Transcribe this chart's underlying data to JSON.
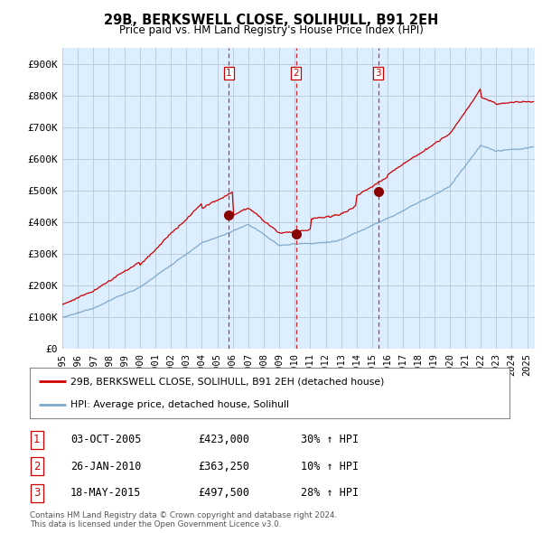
{
  "title": "29B, BERKSWELL CLOSE, SOLIHULL, B91 2EH",
  "subtitle": "Price paid vs. HM Land Registry's House Price Index (HPI)",
  "ylabel_ticks": [
    "£0",
    "£100K",
    "£200K",
    "£300K",
    "£400K",
    "£500K",
    "£600K",
    "£700K",
    "£800K",
    "£900K"
  ],
  "ytick_values": [
    0,
    100000,
    200000,
    300000,
    400000,
    500000,
    600000,
    700000,
    800000,
    900000
  ],
  "ylim": [
    0,
    950000
  ],
  "xlim_start": 1995.0,
  "xlim_end": 2025.5,
  "vline_positions": [
    2005.75,
    2010.07,
    2015.38
  ],
  "vline_labels": [
    "1",
    "2",
    "3"
  ],
  "sale_points_x": [
    2005.75,
    2010.07,
    2015.38
  ],
  "sale_points_y": [
    423000,
    363250,
    497500
  ],
  "legend_entries": [
    "29B, BERKSWELL CLOSE, SOLIHULL, B91 2EH (detached house)",
    "HPI: Average price, detached house, Solihull"
  ],
  "table_rows": [
    [
      "1",
      "03-OCT-2005",
      "£423,000",
      "30% ↑ HPI"
    ],
    [
      "2",
      "26-JAN-2010",
      "£363,250",
      "10% ↑ HPI"
    ],
    [
      "3",
      "18-MAY-2015",
      "£497,500",
      "28% ↑ HPI"
    ]
  ],
  "footnote": "Contains HM Land Registry data © Crown copyright and database right 2024.\nThis data is licensed under the Open Government Licence v3.0.",
  "line_color_red": "#cc0000",
  "line_color_blue": "#7faacc",
  "chart_bg_color": "#ddeeff",
  "grid_color": "#bbccdd",
  "bg_color": "#ffffff",
  "xtick_years": [
    1995,
    1996,
    1997,
    1998,
    1999,
    2000,
    2001,
    2002,
    2003,
    2004,
    2005,
    2006,
    2007,
    2008,
    2009,
    2010,
    2011,
    2012,
    2013,
    2014,
    2015,
    2016,
    2017,
    2018,
    2019,
    2020,
    2021,
    2022,
    2023,
    2024,
    2025
  ]
}
